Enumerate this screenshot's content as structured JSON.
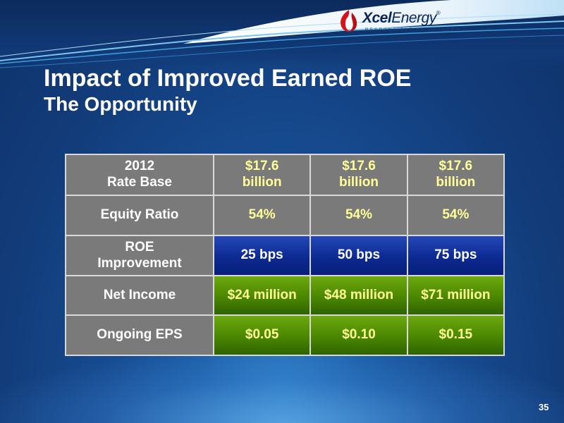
{
  "logo": {
    "name_bold": "Xcel",
    "name_light": "Energy",
    "registered_mark": "®",
    "tagline": "RESPONSIBLE BY NATURE™"
  },
  "slide": {
    "title": "Impact of Improved Earned ROE",
    "subtitle": "The Opportunity",
    "page_number": "35"
  },
  "table": {
    "rows": [
      {
        "label": [
          "2012",
          "Rate Base"
        ],
        "values": [
          [
            "$17.6",
            "billion"
          ],
          [
            "$17.6",
            "billion"
          ],
          [
            "$17.6",
            "billion"
          ]
        ]
      },
      {
        "label": [
          "Equity Ratio"
        ],
        "values": [
          [
            "54%"
          ],
          [
            "54%"
          ],
          [
            "54%"
          ]
        ]
      },
      {
        "label": [
          "ROE",
          "Improvement"
        ],
        "values": [
          [
            "25 bps"
          ],
          [
            "50 bps"
          ],
          [
            "75 bps"
          ]
        ]
      },
      {
        "label": [
          "Net Income"
        ],
        "values": [
          [
            "$24 million"
          ],
          [
            "$48 million"
          ],
          [
            "$71 million"
          ]
        ]
      },
      {
        "label": [
          "Ongoing EPS"
        ],
        "values": [
          [
            "$0.05"
          ],
          [
            "$0.10"
          ],
          [
            "$0.15"
          ]
        ]
      }
    ]
  },
  "colors": {
    "background": "#164a8f",
    "label_cell": "#7a7a7a",
    "highlight_text": "#ffff99",
    "roe_row": "#0d2a92",
    "green_rows": "#4d8a00"
  }
}
